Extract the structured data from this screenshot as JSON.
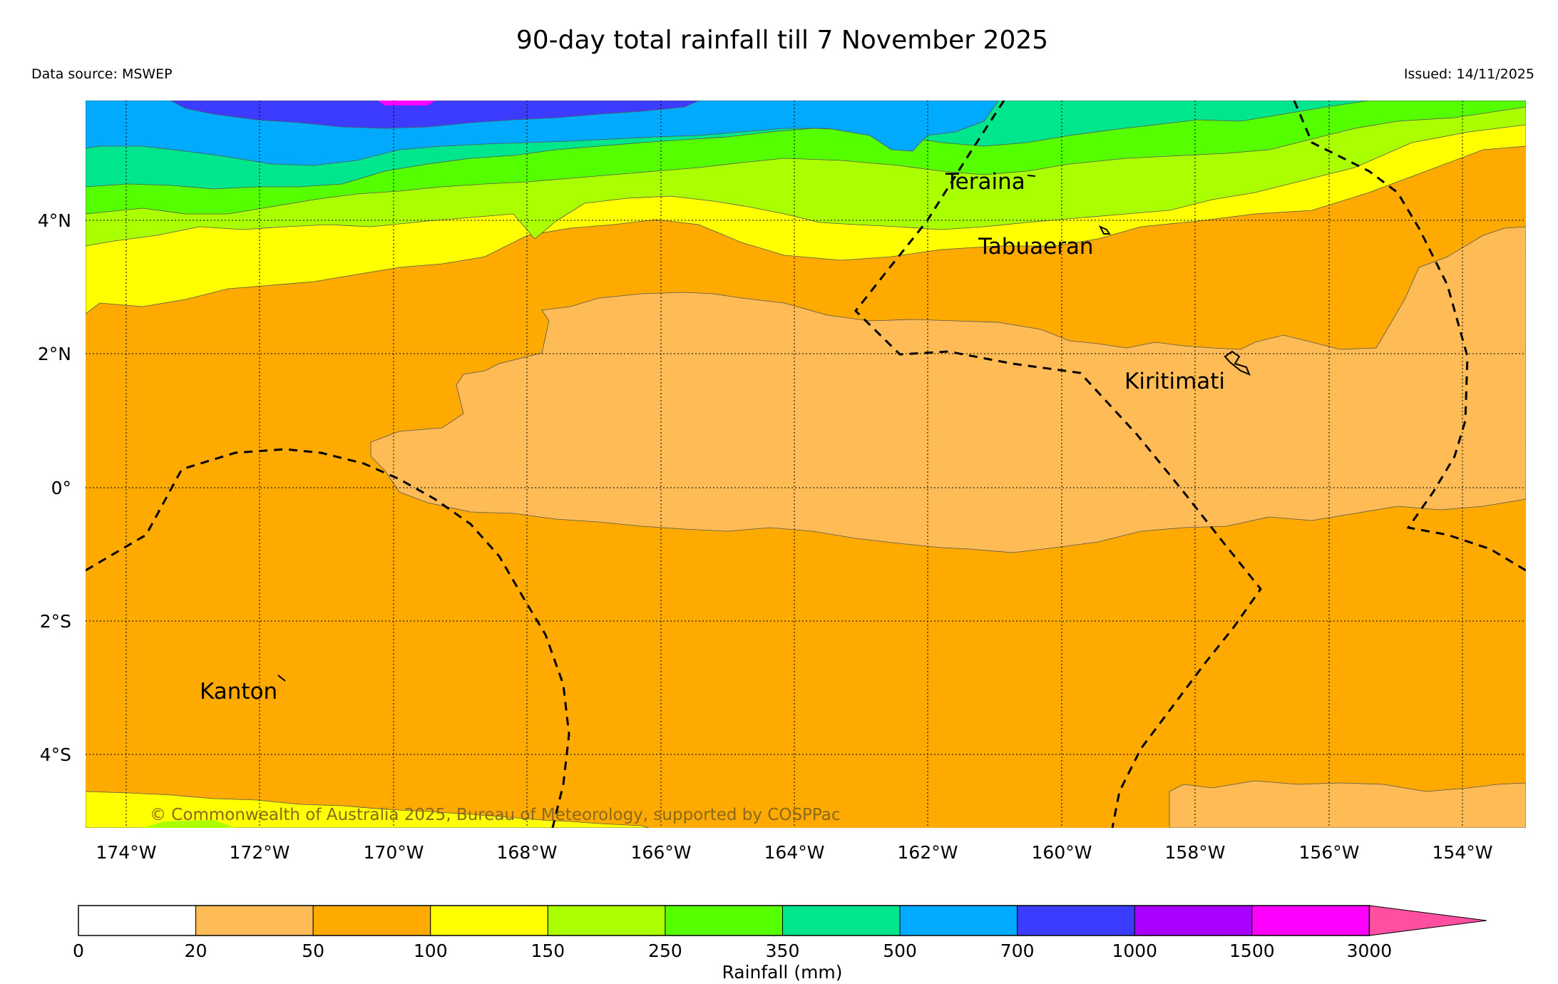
{
  "title": "90-day total rainfall till 7 November 2025",
  "data_source": "Data source: MSWEP",
  "issued": "Issued: 14/11/2025",
  "credit": "© Commonwealth of Australia 2025, Bureau of Meteorology, supported by COSPPac",
  "lat_labels": [
    "4°N",
    "2°N",
    "0°",
    "2°S",
    "4°S"
  ],
  "lon_labels": [
    "174°W",
    "172°W",
    "170°W",
    "168°W",
    "166°W",
    "164°W",
    "162°W",
    "160°W",
    "158°W",
    "156°W",
    "154°W"
  ],
  "places": {
    "teraina": "Teraina",
    "tabuaeran": "Tabuaeran",
    "kiritimati": "Kiritimati",
    "kanton": "Kanton"
  },
  "colorbar": {
    "label": "Rainfall (mm)",
    "ticks": [
      "0",
      "20",
      "50",
      "100",
      "150",
      "250",
      "350",
      "500",
      "700",
      "1000",
      "1500",
      "3000"
    ],
    "colors": [
      "#ffffff",
      "#ffbb55",
      "#ffaa00",
      "#ffff00",
      "#aaff00",
      "#55ff00",
      "#00e68c",
      "#00aaff",
      "#3c3cff",
      "#aa00ff",
      "#ff00ff",
      "#ff4fa0"
    ]
  }
}
